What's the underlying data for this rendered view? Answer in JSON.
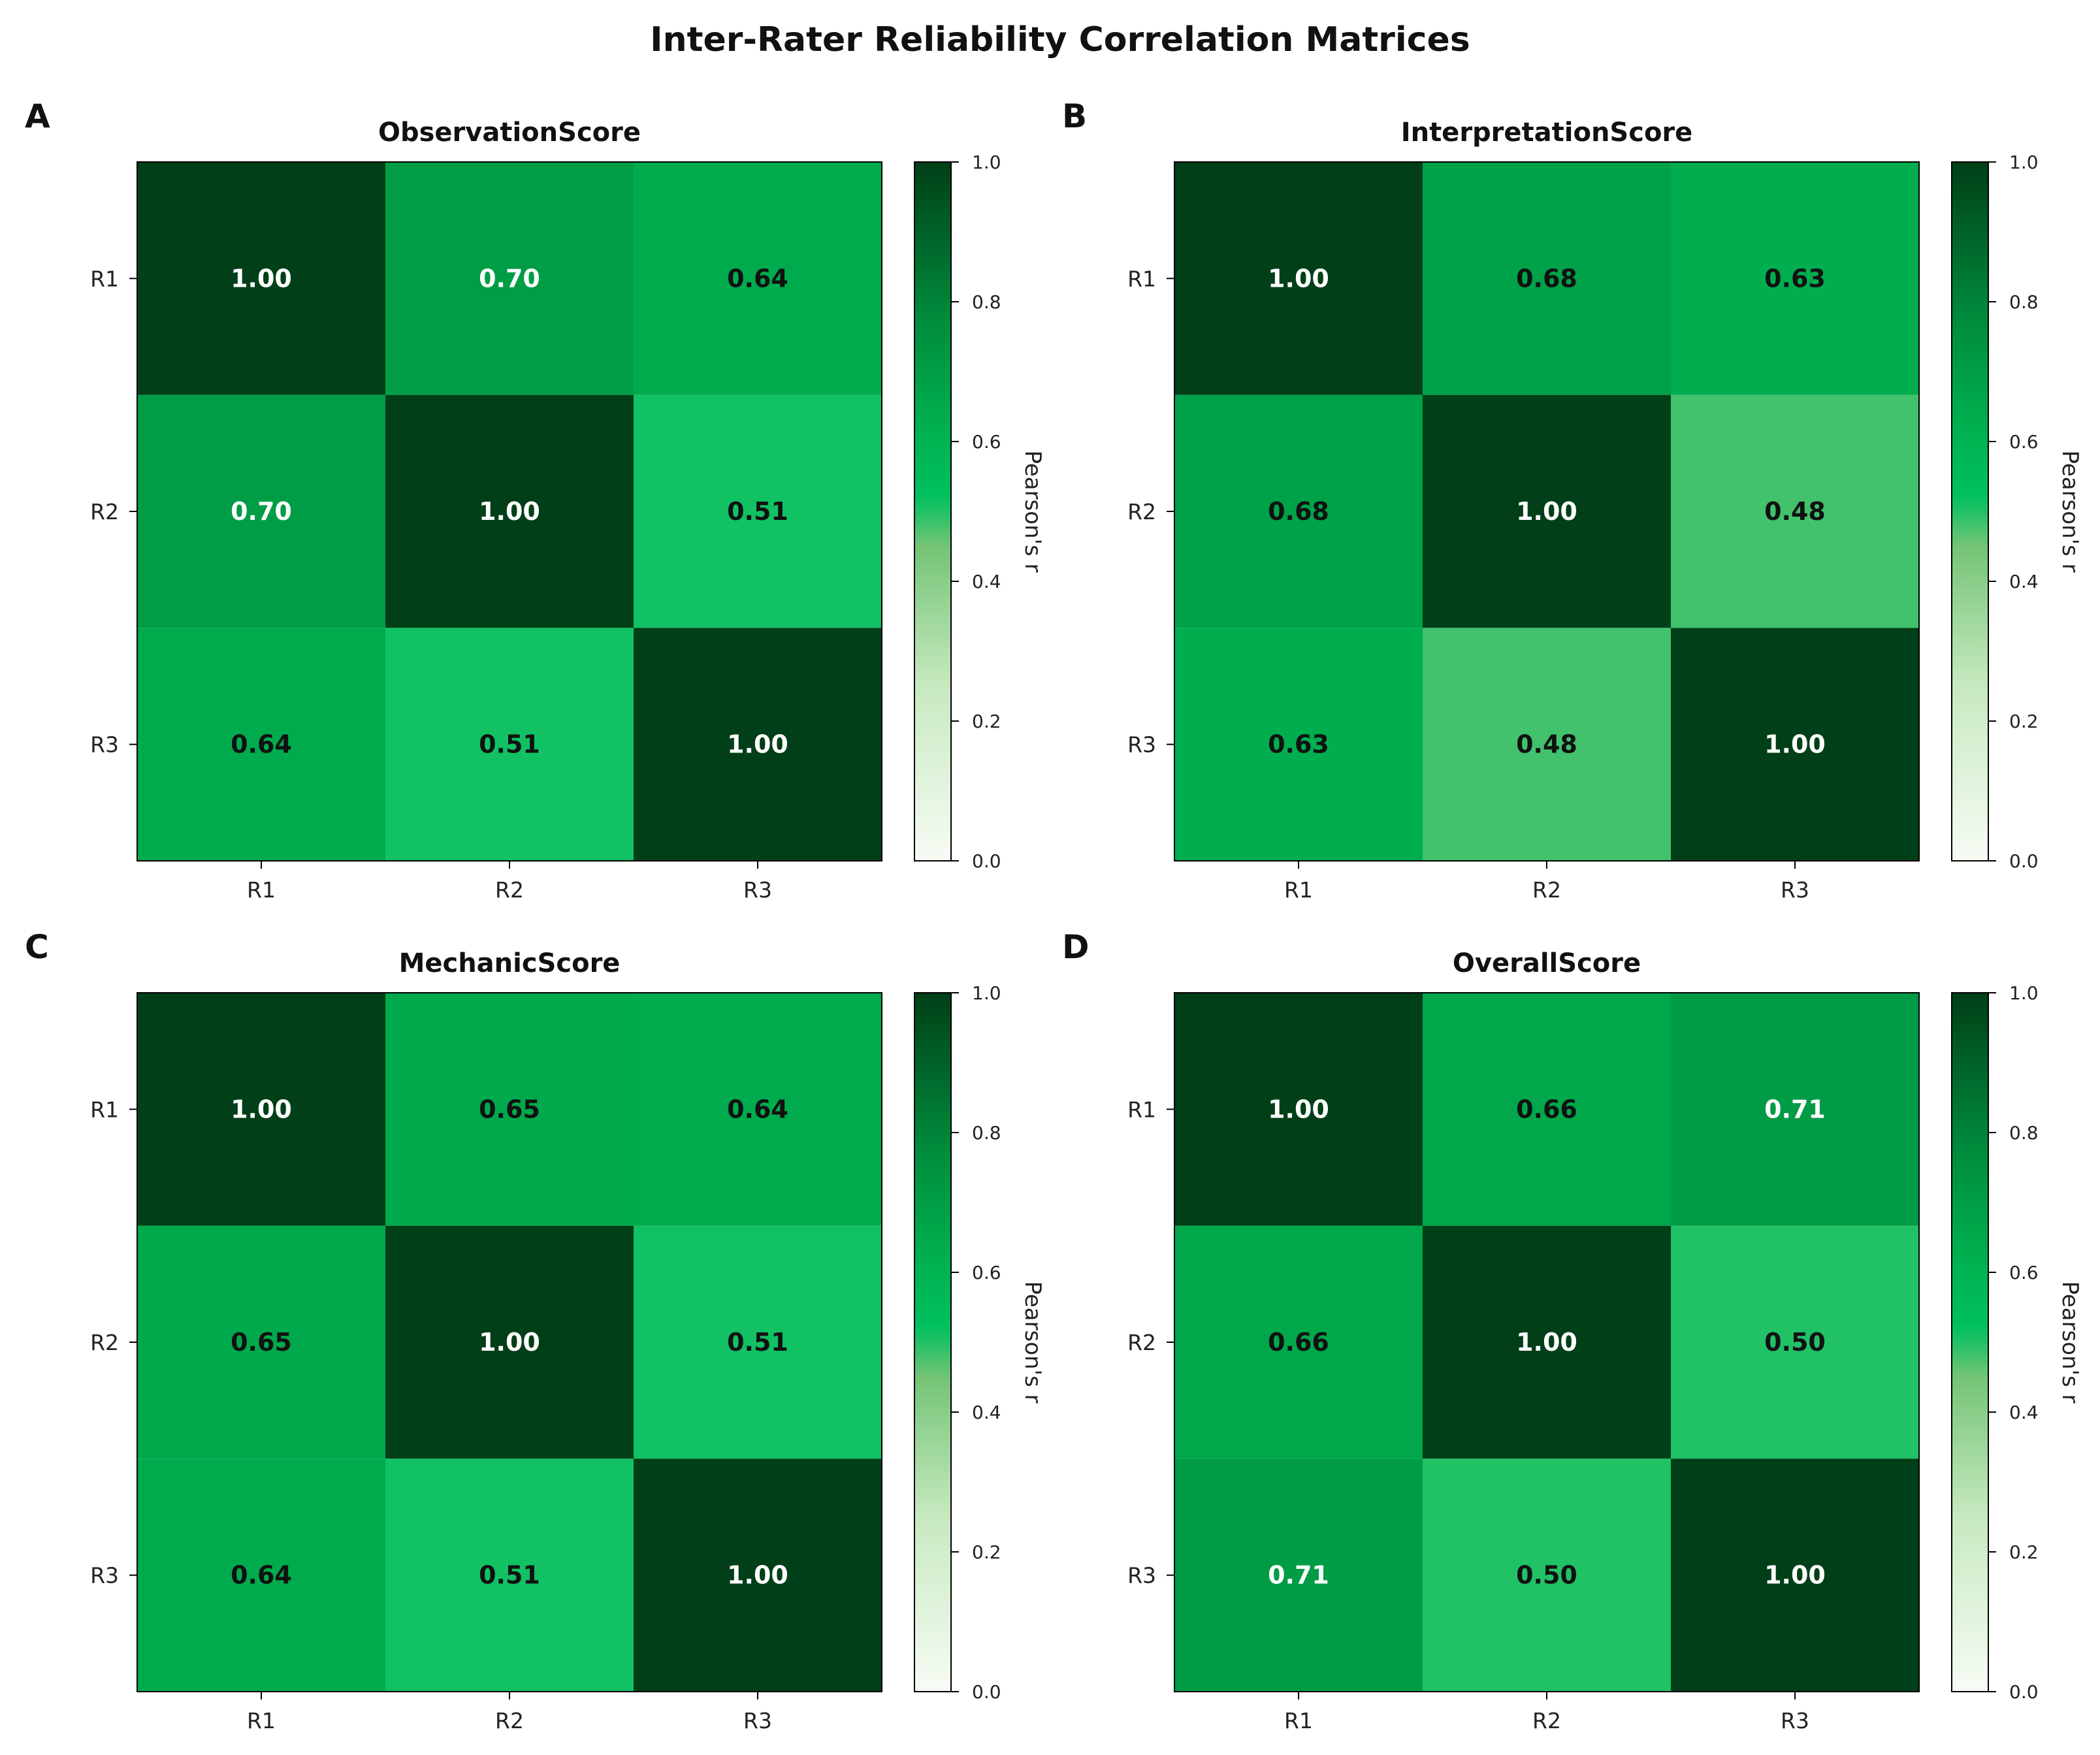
{
  "title": "Inter-Rater Reliability Correlation Matrices",
  "chart_data": [
    {
      "type": "heatmap",
      "panel": "A",
      "title": "ObservationScore",
      "x_categories": [
        "R1",
        "R2",
        "R3"
      ],
      "y_categories": [
        "R1",
        "R2",
        "R3"
      ],
      "values": [
        [
          1.0,
          0.7,
          0.64
        ],
        [
          0.7,
          1.0,
          0.51
        ],
        [
          0.64,
          0.51,
          1.0
        ]
      ],
      "value_labels": [
        [
          "1.00",
          "0.70",
          "0.64"
        ],
        [
          "0.70",
          "1.00",
          "0.51"
        ],
        [
          "0.64",
          "0.51",
          "1.00"
        ]
      ],
      "colorbar": {
        "label": "Pearson's r",
        "range": [
          0.0,
          1.0
        ],
        "ticks": [
          "0.0",
          "0.2",
          "0.4",
          "0.6",
          "0.8",
          "1.0"
        ]
      }
    },
    {
      "type": "heatmap",
      "panel": "B",
      "title": "InterpretationScore",
      "x_categories": [
        "R1",
        "R2",
        "R3"
      ],
      "y_categories": [
        "R1",
        "R2",
        "R3"
      ],
      "values": [
        [
          1.0,
          0.68,
          0.63
        ],
        [
          0.68,
          1.0,
          0.48
        ],
        [
          0.63,
          0.48,
          1.0
        ]
      ],
      "value_labels": [
        [
          "1.00",
          "0.68",
          "0.63"
        ],
        [
          "0.68",
          "1.00",
          "0.48"
        ],
        [
          "0.63",
          "0.48",
          "1.00"
        ]
      ],
      "colorbar": {
        "label": "Pearson's r",
        "range": [
          0.0,
          1.0
        ],
        "ticks": [
          "0.0",
          "0.2",
          "0.4",
          "0.6",
          "0.8",
          "1.0"
        ]
      }
    },
    {
      "type": "heatmap",
      "panel": "C",
      "title": "MechanicScore",
      "x_categories": [
        "R1",
        "R2",
        "R3"
      ],
      "y_categories": [
        "R1",
        "R2",
        "R3"
      ],
      "values": [
        [
          1.0,
          0.65,
          0.64
        ],
        [
          0.65,
          1.0,
          0.51
        ],
        [
          0.64,
          0.51,
          1.0
        ]
      ],
      "value_labels": [
        [
          "1.00",
          "0.65",
          "0.64"
        ],
        [
          "0.65",
          "1.00",
          "0.51"
        ],
        [
          "0.64",
          "0.51",
          "1.00"
        ]
      ],
      "colorbar": {
        "label": "Pearson's r",
        "range": [
          0.0,
          1.0
        ],
        "ticks": [
          "0.0",
          "0.2",
          "0.4",
          "0.6",
          "0.8",
          "1.0"
        ]
      }
    },
    {
      "type": "heatmap",
      "panel": "D",
      "title": "OverallScore",
      "x_categories": [
        "R1",
        "R2",
        "R3"
      ],
      "y_categories": [
        "R1",
        "R2",
        "R3"
      ],
      "values": [
        [
          1.0,
          0.66,
          0.71
        ],
        [
          0.66,
          1.0,
          0.5
        ],
        [
          0.71,
          0.5,
          1.0
        ]
      ],
      "value_labels": [
        [
          "1.00",
          "0.66",
          "0.71"
        ],
        [
          "0.66",
          "1.00",
          "0.50"
        ],
        [
          "0.71",
          "0.50",
          "1.00"
        ]
      ],
      "colorbar": {
        "label": "Pearson's r",
        "range": [
          0.0,
          1.0
        ],
        "ticks": [
          "0.0",
          "0.2",
          "0.4",
          "0.6",
          "0.8",
          "1.0"
        ]
      }
    }
  ],
  "colors": {
    "colormap": [
      "#f7fcf5",
      "#c7e9c0",
      "#74c476",
      "#00c060",
      "#00b050",
      "#008a3c",
      "#003f17"
    ],
    "label_dark": "#111111",
    "label_light": "#ffffff",
    "axis": "#000000"
  }
}
